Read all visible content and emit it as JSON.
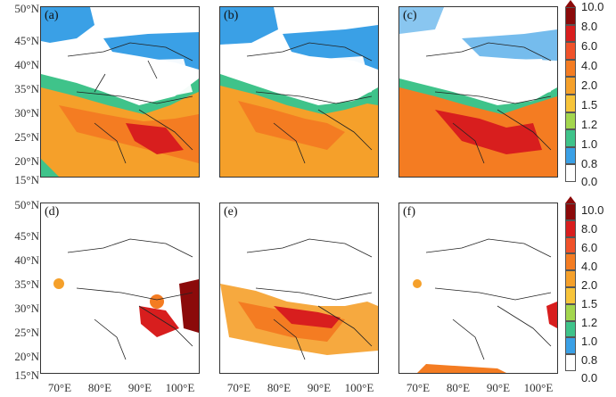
{
  "panels": [
    {
      "label": "(a)"
    },
    {
      "label": "(b)"
    },
    {
      "label": "(c)"
    },
    {
      "label": "(d)"
    },
    {
      "label": "(e)"
    },
    {
      "label": "(f)"
    }
  ],
  "lat_labels": [
    "50°N",
    "45°N",
    "40°N",
    "35°N",
    "30°N",
    "25°N",
    "20°N",
    "15°N"
  ],
  "lon_labels": [
    "70°E",
    "80°E",
    "90°E",
    "100°E"
  ],
  "colorbar": {
    "ticks": [
      "10.0",
      "8.0",
      "6.0",
      "4.0",
      "2.0",
      "1.5",
      "1.2",
      "1.0",
      "0.8",
      "0.0"
    ],
    "colors": [
      "#8b0a0a",
      "#d81e1e",
      "#f0522a",
      "#f47c22",
      "#f5a02a",
      "#f7c43a",
      "#a3d64e",
      "#3fc38a",
      "#3aa0e6",
      "#ffffff"
    ]
  }
}
